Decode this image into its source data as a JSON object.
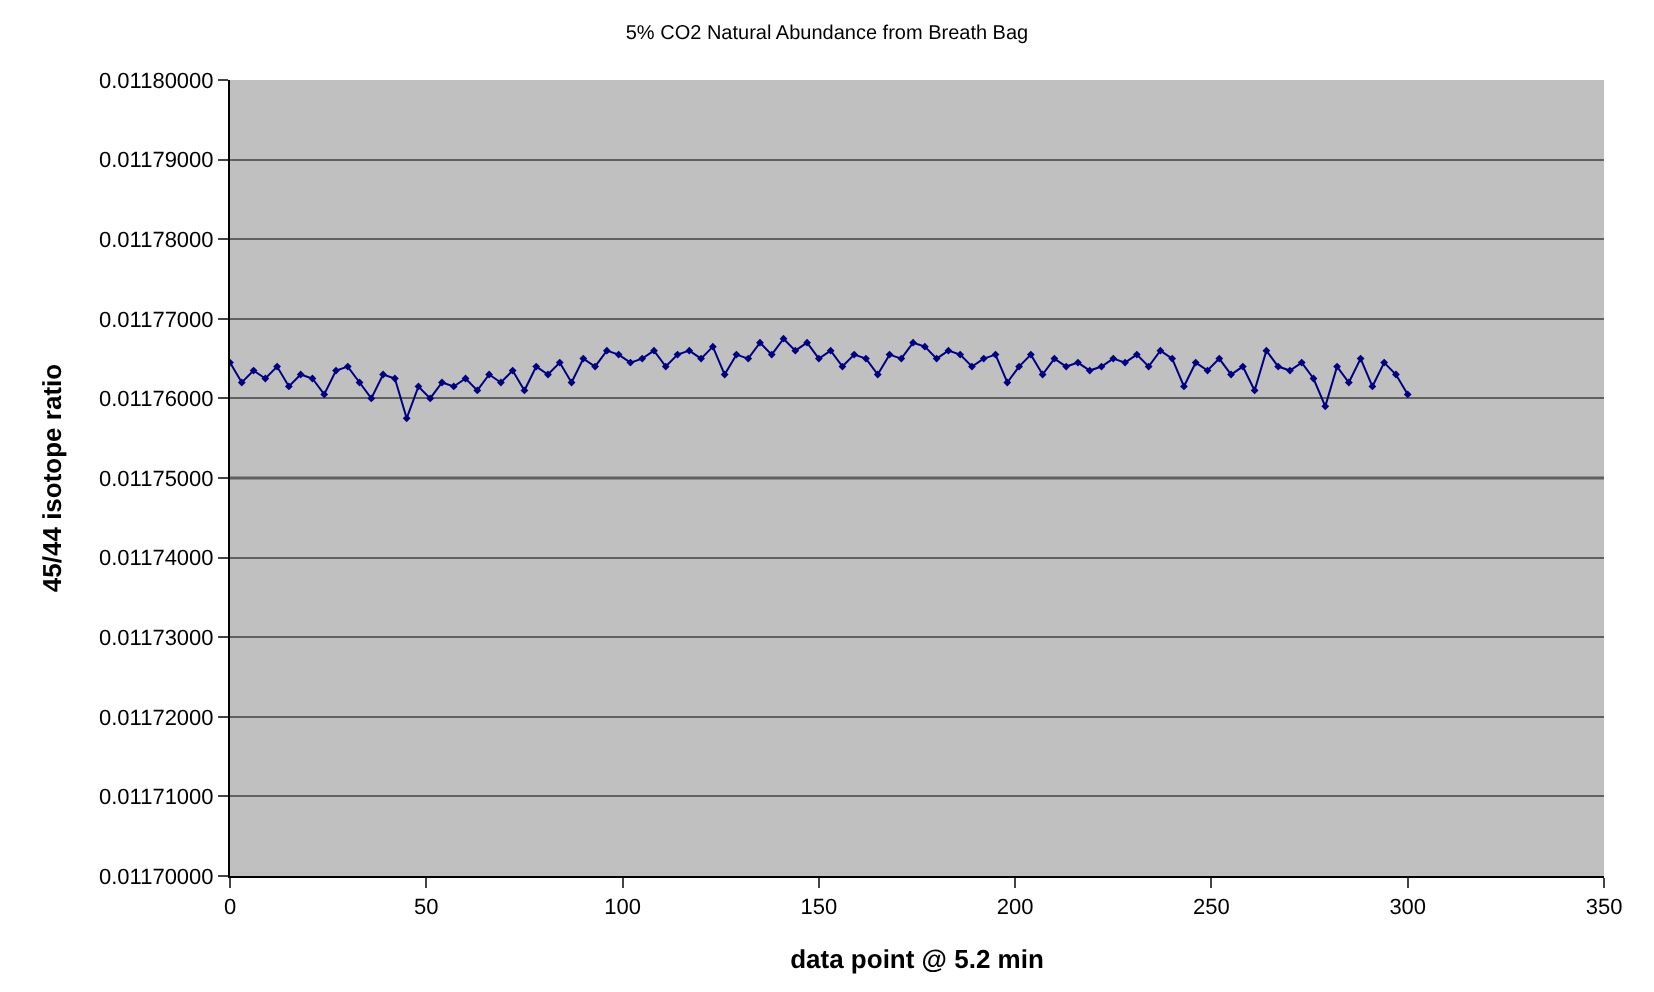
{
  "chart_data": {
    "type": "line",
    "title": "5% CO2 Natural Abundance from Breath Bag",
    "xlabel": "data point @ 5.2 min",
    "ylabel": "45/44 isotope ratio",
    "x": [
      0,
      3,
      6,
      9,
      12,
      15,
      18,
      21,
      24,
      27,
      30,
      33,
      36,
      39,
      42,
      45,
      48,
      51,
      54,
      57,
      60,
      63,
      66,
      69,
      72,
      75,
      78,
      81,
      84,
      87,
      90,
      93,
      96,
      99,
      102,
      105,
      108,
      111,
      114,
      117,
      120,
      123,
      126,
      129,
      132,
      135,
      138,
      141,
      144,
      147,
      150,
      153,
      156,
      159,
      162,
      165,
      168,
      171,
      174,
      177,
      180,
      183,
      186,
      189,
      192,
      195,
      198,
      201,
      204,
      207,
      210,
      213,
      216,
      219,
      222,
      225,
      228,
      231,
      234,
      237,
      240,
      243,
      246,
      249,
      252,
      255,
      258,
      261,
      264,
      267,
      270,
      273,
      276,
      279,
      282,
      285,
      288,
      291,
      294,
      297,
      300
    ],
    "series": [
      {
        "color": "#000080",
        "values": [
          0.0117645,
          0.011762,
          0.0117635,
          0.0117625,
          0.011764,
          0.0117615,
          0.011763,
          0.0117625,
          0.0117605,
          0.0117635,
          0.011764,
          0.011762,
          0.01176,
          0.011763,
          0.0117625,
          0.0117575,
          0.0117615,
          0.01176,
          0.011762,
          0.0117615,
          0.0117625,
          0.011761,
          0.011763,
          0.011762,
          0.0117635,
          0.011761,
          0.011764,
          0.011763,
          0.0117645,
          0.011762,
          0.011765,
          0.011764,
          0.011766,
          0.0117655,
          0.0117645,
          0.011765,
          0.011766,
          0.011764,
          0.0117655,
          0.011766,
          0.011765,
          0.0117665,
          0.011763,
          0.0117655,
          0.011765,
          0.011767,
          0.0117655,
          0.0117675,
          0.011766,
          0.011767,
          0.011765,
          0.011766,
          0.011764,
          0.0117655,
          0.011765,
          0.011763,
          0.0117655,
          0.011765,
          0.011767,
          0.0117665,
          0.011765,
          0.011766,
          0.0117655,
          0.011764,
          0.011765,
          0.0117655,
          0.011762,
          0.011764,
          0.0117655,
          0.011763,
          0.011765,
          0.011764,
          0.0117645,
          0.0117635,
          0.011764,
          0.011765,
          0.0117645,
          0.0117655,
          0.011764,
          0.011766,
          0.011765,
          0.0117615,
          0.0117645,
          0.0117635,
          0.011765,
          0.011763,
          0.011764,
          0.011761,
          0.011766,
          0.011764,
          0.0117635,
          0.0117645,
          0.0117625,
          0.011759,
          0.011764,
          0.011762,
          0.011765,
          0.0117615,
          0.0117645,
          0.011763,
          0.0117605
        ]
      }
    ],
    "xlim": [
      0,
      350
    ],
    "xticks": [
      0,
      50,
      100,
      150,
      200,
      250,
      300,
      350
    ],
    "ylim": [
      0.0117,
      0.0118
    ],
    "yticks": [
      {
        "value": 0.0117,
        "label": "0.01170000"
      },
      {
        "value": 0.01171,
        "label": "0.01171000"
      },
      {
        "value": 0.01172,
        "label": "0.01172000"
      },
      {
        "value": 0.01173,
        "label": "0.01173000"
      },
      {
        "value": 0.01174,
        "label": "0.01174000"
      },
      {
        "value": 0.01175,
        "label": "0.01175000"
      },
      {
        "value": 0.01176,
        "label": "0.01176000"
      },
      {
        "value": 0.01177,
        "label": "0.01177000"
      },
      {
        "value": 0.01178,
        "label": "0.01178000"
      },
      {
        "value": 0.01179,
        "label": "0.01179000"
      },
      {
        "value": 0.0118,
        "label": "0.01180000"
      }
    ],
    "ref_lines": [
      {
        "axis": "y",
        "value": 0.01175,
        "color": "#000000"
      }
    ],
    "grid": "y",
    "marker": "diamond",
    "line_style": "solid"
  }
}
